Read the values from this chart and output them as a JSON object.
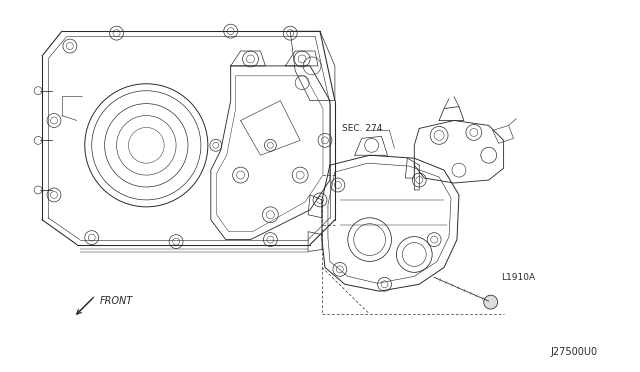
{
  "background_color": "#ffffff",
  "figure_width": 6.4,
  "figure_height": 3.72,
  "dpi": 100,
  "line_color": "#2a2a2a",
  "line_width": 0.7,
  "label_sec274": "SEC. 274",
  "label_11910A": "L1910A",
  "label_front": "FRONT",
  "label_diagram_id": "J27500U0",
  "font_size_labels": 6.5,
  "font_size_id": 7,
  "font_size_front": 7
}
